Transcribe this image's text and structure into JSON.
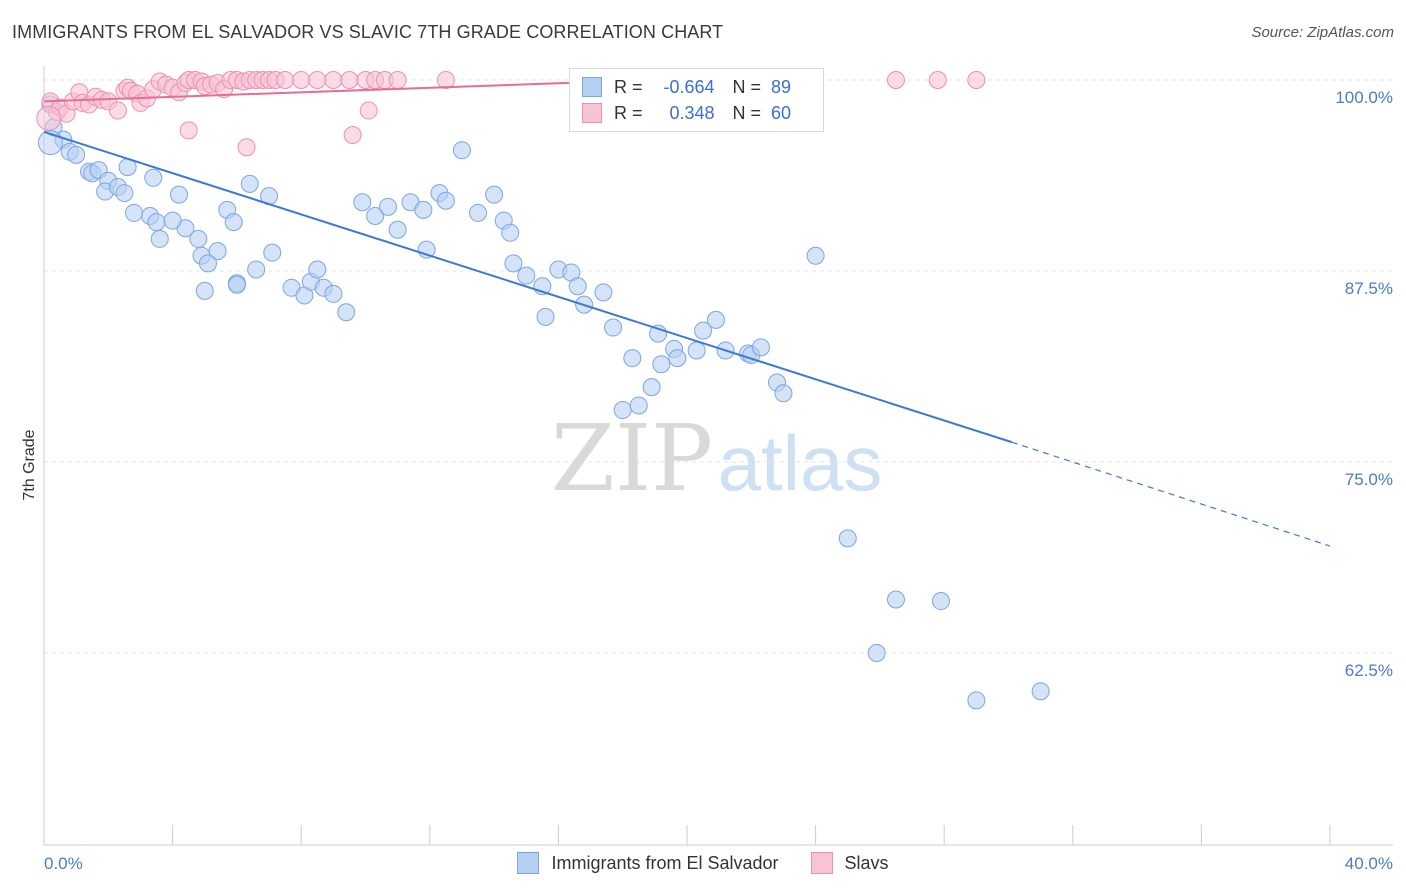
{
  "title": "IMMIGRANTS FROM EL SALVADOR VS SLAVIC 7TH GRADE CORRELATION CHART",
  "source": "Source: ZipAtlas.com",
  "watermark": {
    "zip": "ZIP",
    "atlas": "atlas"
  },
  "legend": {
    "r_label": "R =",
    "n_label": "N =",
    "rows": [
      {
        "r": "-0.664",
        "n": "89",
        "fill": "#b7d0f2",
        "stroke": "#7aa6e6"
      },
      {
        "r": "0.348",
        "n": "60",
        "fill": "#f8c3d3",
        "stroke": "#ef8fae"
      }
    ]
  },
  "chart_data": {
    "type": "scatter",
    "title": "IMMIGRANTS FROM EL SALVADOR VS SLAVIC 7TH GRADE CORRELATION CHART",
    "xlabel": "",
    "ylabel": "7th Grade",
    "xlim": [
      0,
      40
    ],
    "ylim": [
      52,
      102.5
    ],
    "x_tick_labels": [
      "0.0%",
      "40.0%"
    ],
    "y_ticks": [
      100,
      87.5,
      75,
      62.5
    ],
    "y_tick_labels": [
      "100.0%",
      "87.5%",
      "75.0%",
      "62.5%"
    ],
    "grid": true,
    "legend_position": "top-center",
    "series": [
      {
        "name": "Immigrants from El Salvador",
        "color": "#7aa6e6",
        "fill": "#b7d0f2",
        "line_color": "#3b78d8",
        "trend": {
          "x0": 0,
          "y0": 96.6,
          "x1": 30.1,
          "y1": 76.3,
          "dash_x1": 40,
          "dash_y1": 69.5
        },
        "points": [
          [
            0.2,
            98.4
          ],
          [
            0.3,
            96.9
          ],
          [
            0.6,
            96.1
          ],
          [
            0.8,
            95.3
          ],
          [
            1.0,
            95.1
          ],
          [
            1.4,
            94.0
          ],
          [
            1.5,
            93.9
          ],
          [
            1.7,
            94.1
          ],
          [
            2.0,
            93.4
          ],
          [
            1.9,
            92.7
          ],
          [
            2.3,
            93.0
          ],
          [
            2.6,
            94.3
          ],
          [
            2.5,
            92.6
          ],
          [
            3.4,
            93.6
          ],
          [
            3.3,
            91.1
          ],
          [
            3.5,
            90.7
          ],
          [
            2.8,
            91.3
          ],
          [
            4.2,
            92.5
          ],
          [
            3.6,
            89.6
          ],
          [
            4.4,
            90.3
          ],
          [
            4.0,
            90.8
          ],
          [
            4.8,
            89.6
          ],
          [
            4.9,
            88.5
          ],
          [
            5.4,
            88.8
          ],
          [
            5.7,
            91.5
          ],
          [
            5.9,
            90.7
          ],
          [
            6.4,
            93.2
          ],
          [
            7.0,
            92.4
          ],
          [
            7.1,
            88.7
          ],
          [
            6.6,
            87.6
          ],
          [
            6.0,
            86.7
          ],
          [
            5.1,
            88.0
          ],
          [
            5.0,
            86.2
          ],
          [
            6.0,
            86.6
          ],
          [
            7.7,
            86.4
          ],
          [
            8.1,
            85.9
          ],
          [
            8.3,
            86.8
          ],
          [
            8.5,
            87.6
          ],
          [
            8.7,
            86.4
          ],
          [
            9.0,
            86.0
          ],
          [
            9.4,
            84.8
          ],
          [
            9.9,
            92.0
          ],
          [
            10.3,
            91.1
          ],
          [
            10.7,
            91.7
          ],
          [
            11.0,
            90.2
          ],
          [
            11.4,
            92.0
          ],
          [
            11.8,
            91.5
          ],
          [
            11.9,
            88.9
          ],
          [
            12.3,
            92.6
          ],
          [
            12.5,
            92.1
          ],
          [
            13.0,
            95.4
          ],
          [
            13.5,
            91.3
          ],
          [
            14.0,
            92.5
          ],
          [
            14.3,
            90.8
          ],
          [
            14.5,
            90.0
          ],
          [
            14.6,
            88.0
          ],
          [
            15.0,
            87.2
          ],
          [
            15.5,
            86.5
          ],
          [
            15.6,
            84.5
          ],
          [
            16.0,
            87.6
          ],
          [
            16.4,
            87.4
          ],
          [
            16.6,
            86.5
          ],
          [
            16.8,
            85.3
          ],
          [
            17.4,
            86.1
          ],
          [
            17.7,
            83.8
          ],
          [
            18.3,
            81.8
          ],
          [
            19.1,
            83.4
          ],
          [
            19.2,
            81.4
          ],
          [
            19.6,
            82.4
          ],
          [
            18.0,
            78.4
          ],
          [
            18.5,
            78.7
          ],
          [
            18.9,
            79.9
          ],
          [
            19.7,
            81.8
          ],
          [
            20.3,
            82.3
          ],
          [
            20.5,
            83.6
          ],
          [
            20.9,
            84.3
          ],
          [
            21.2,
            82.3
          ],
          [
            21.9,
            82.1
          ],
          [
            22.0,
            82.0
          ],
          [
            22.3,
            82.5
          ],
          [
            22.8,
            80.2
          ],
          [
            23.0,
            79.5
          ],
          [
            25.0,
            70.0
          ],
          [
            26.5,
            66.0
          ],
          [
            27.9,
            65.9
          ],
          [
            25.9,
            62.5
          ],
          [
            29.0,
            59.4
          ],
          [
            31.0,
            60.0
          ],
          [
            24.0,
            88.5
          ]
        ]
      },
      {
        "name": "Slavs",
        "color": "#ef8fae",
        "fill": "#f8c3d3",
        "line_color": "#e86c96",
        "trend": {
          "x0": 0,
          "y0": 98.6,
          "x1": 21.5,
          "y1": 100.2
        },
        "points": [
          [
            0.2,
            98.6
          ],
          [
            0.4,
            97.9
          ],
          [
            0.5,
            98.2
          ],
          [
            0.7,
            97.8
          ],
          [
            0.9,
            98.6
          ],
          [
            1.1,
            99.2
          ],
          [
            1.2,
            98.5
          ],
          [
            1.4,
            98.4
          ],
          [
            1.6,
            98.9
          ],
          [
            1.8,
            98.7
          ],
          [
            2.0,
            98.6
          ],
          [
            2.3,
            98.0
          ],
          [
            2.5,
            99.3
          ],
          [
            2.6,
            99.5
          ],
          [
            2.7,
            99.3
          ],
          [
            2.9,
            99.1
          ],
          [
            3.0,
            98.5
          ],
          [
            3.2,
            98.8
          ],
          [
            3.4,
            99.4
          ],
          [
            3.6,
            99.9
          ],
          [
            3.8,
            99.7
          ],
          [
            4.0,
            99.5
          ],
          [
            4.2,
            99.2
          ],
          [
            4.4,
            99.8
          ],
          [
            4.5,
            100.0
          ],
          [
            4.7,
            100.0
          ],
          [
            4.9,
            99.9
          ],
          [
            5.0,
            99.6
          ],
          [
            5.2,
            99.7
          ],
          [
            5.4,
            99.8
          ],
          [
            5.6,
            99.4
          ],
          [
            5.8,
            100.0
          ],
          [
            6.0,
            100.0
          ],
          [
            6.2,
            99.9
          ],
          [
            6.4,
            100.0
          ],
          [
            6.6,
            100.0
          ],
          [
            6.8,
            100.0
          ],
          [
            7.0,
            100.0
          ],
          [
            7.2,
            100.0
          ],
          [
            7.5,
            100.0
          ],
          [
            8.0,
            100.0
          ],
          [
            8.5,
            100.0
          ],
          [
            9.0,
            100.0
          ],
          [
            9.5,
            100.0
          ],
          [
            10.0,
            100.0
          ],
          [
            10.3,
            100.0
          ],
          [
            10.6,
            100.0
          ],
          [
            11.0,
            100.0
          ],
          [
            12.5,
            100.0
          ],
          [
            17.2,
            100.0
          ],
          [
            19.5,
            100.0
          ],
          [
            21.0,
            100.0
          ],
          [
            22.8,
            100.0
          ],
          [
            26.5,
            100.0
          ],
          [
            27.8,
            100.0
          ],
          [
            29.0,
            100.0
          ],
          [
            4.5,
            96.7
          ],
          [
            6.3,
            95.6
          ],
          [
            9.6,
            96.4
          ],
          [
            10.1,
            98.0
          ]
        ]
      }
    ]
  }
}
